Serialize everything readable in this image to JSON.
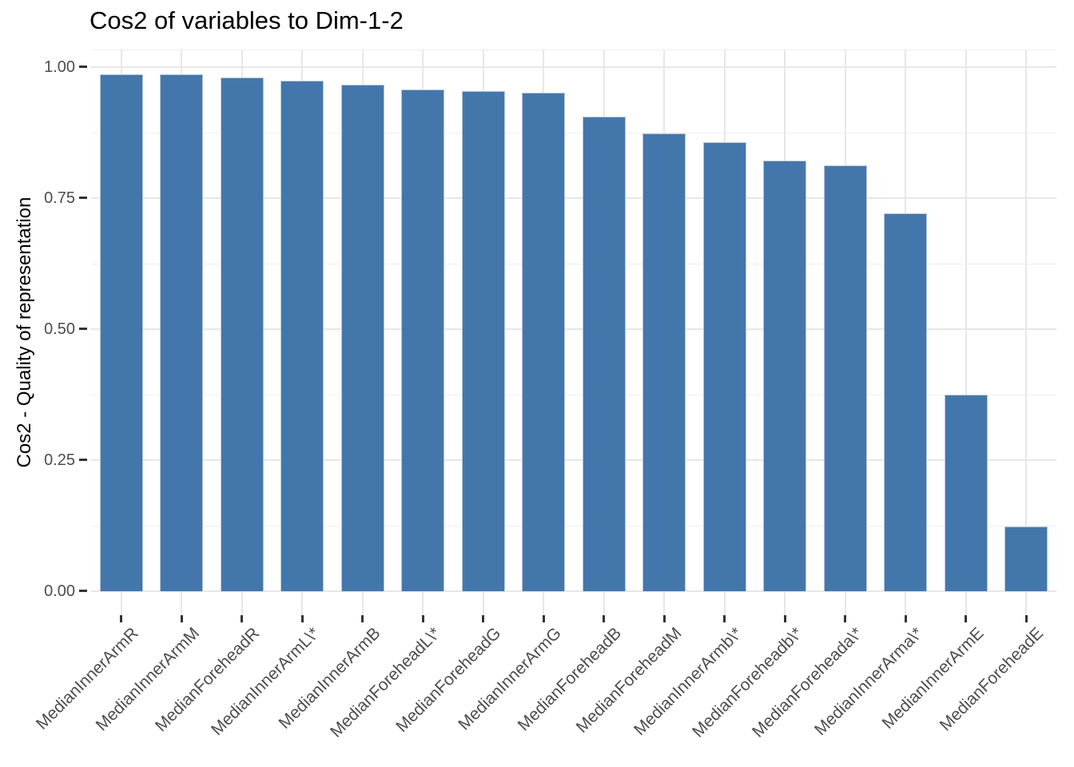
{
  "title": "Cos2 of variables to Dim-1-2",
  "chart_data": {
    "type": "bar",
    "title": "Cos2 of variables to Dim-1-2",
    "xlabel": "",
    "ylabel": "Cos2 - Quality of representation",
    "legend_position": "none",
    "grid": true,
    "ylim": [
      0,
      1.0
    ],
    "y_tick_labels": [
      "0.00",
      "0.25",
      "0.50",
      "0.75",
      "1.00"
    ],
    "y_tick_values": [
      0,
      0.25,
      0.5,
      0.75,
      1.0
    ],
    "y_minor_values": [
      0.125,
      0.375,
      0.625,
      0.875
    ],
    "categories": [
      "MedianInnerArmR",
      "MedianInnerArmM",
      "MedianForeheadR",
      "MedianInnerArmL\\*",
      "MedianInnerArmB",
      "MedianForeheadL\\*",
      "MedianForeheadG",
      "MedianInnerArmG",
      "MedianForeheadB",
      "MedianForeheadM",
      "MedianInnerArmb\\*",
      "MedianForeheadb\\*",
      "MedianForeheada\\*",
      "MedianInnerArma\\*",
      "MedianInnerArmE",
      "MedianForeheadE"
    ],
    "values": [
      0.986,
      0.985,
      0.98,
      0.974,
      0.965,
      0.957,
      0.954,
      0.951,
      0.905,
      0.872,
      0.856,
      0.821,
      0.812,
      0.721,
      0.374,
      0.122
    ]
  },
  "colors": {
    "bar_fill": "#4377ab",
    "bar_border": "#b7c6d9",
    "grid": "#e7e7e7",
    "grid_minor": "#efefef",
    "axis_text": "#4d4d4d",
    "tick_mark": "#333333",
    "title_text": "#000000"
  }
}
